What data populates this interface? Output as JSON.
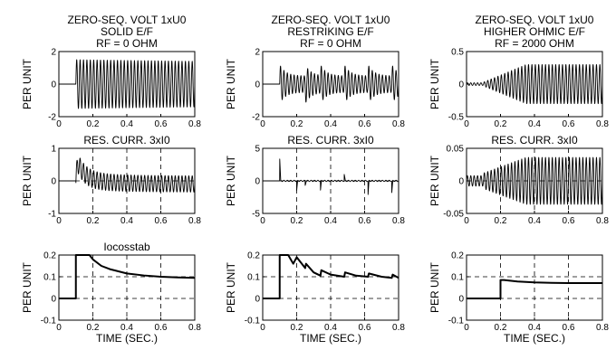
{
  "chart_data": [
    {
      "id": "p11",
      "type": "line",
      "title_lines": [
        "ZERO-SEQ. VOLT 1xU0",
        "SOLID E/F",
        "RF = 0 OHM"
      ],
      "ylabel": "PER UNIT",
      "xlabel": "",
      "xlim": [
        0,
        0.8
      ],
      "ylim": [
        -2,
        2
      ],
      "xticks": [
        "0",
        "0.2",
        "0.4",
        "0.6",
        "0.8"
      ],
      "yticks": [
        {
          "v": -2,
          "label": "-2"
        },
        {
          "v": 0,
          "label": "0"
        },
        {
          "v": 2,
          "label": "2"
        }
      ],
      "grid": false,
      "signal": {
        "kind": "osc",
        "t0": 0.1,
        "pre": 0,
        "start_amp": 1.5,
        "end_amp": 1.4,
        "freq": 50
      }
    },
    {
      "id": "p12",
      "type": "line",
      "title_lines": [
        "ZERO-SEQ. VOLT 1xU0",
        "RESTRIKING  E/F",
        "RF = 0 OHM"
      ],
      "ylabel": "PER UNIT",
      "xlabel": "",
      "xlim": [
        0,
        0.8
      ],
      "ylim": [
        -2,
        2
      ],
      "xticks": [
        "0",
        "0.2",
        "0.4",
        "0.6",
        "0.8"
      ],
      "yticks": [
        {
          "v": -2,
          "label": "-2"
        },
        {
          "v": 0,
          "label": "0"
        },
        {
          "v": 2,
          "label": "2"
        }
      ],
      "grid": false,
      "signal": {
        "kind": "restrike",
        "t0": 0.1,
        "pre": 0,
        "start_amp": 1.2,
        "end_amp": 0.5,
        "freq": 50,
        "restrikes": [
          0.1,
          0.25,
          0.34,
          0.48,
          0.62,
          0.76
        ]
      }
    },
    {
      "id": "p13",
      "type": "line",
      "title_lines": [
        "ZERO-SEQ. VOLT 1xU0",
        "HIGHER OHMIC E/F",
        "RF = 2000 OHM"
      ],
      "ylabel": "PER UNIT",
      "xlabel": "",
      "xlim": [
        0,
        0.8
      ],
      "ylim": [
        -0.5,
        0.5
      ],
      "xticks": [
        "0",
        "0.2",
        "0.4",
        "0.6",
        "0.8"
      ],
      "yticks": [
        {
          "v": -0.5,
          "label": "-0.5"
        },
        {
          "v": 0,
          "label": "0"
        },
        {
          "v": 0.5,
          "label": "0.5"
        }
      ],
      "grid": false,
      "signal": {
        "kind": "grow",
        "t0": 0.1,
        "pre": 0.02,
        "start_amp": 0.03,
        "end_amp": 0.3,
        "freq": 50
      }
    },
    {
      "id": "p21",
      "type": "line",
      "title_lines": [
        "RES. CURR. 3xI0"
      ],
      "ylabel": "PER UNIT",
      "xlabel": "",
      "xlim": [
        0,
        0.8
      ],
      "ylim": [
        -1,
        1
      ],
      "xticks": [
        "0",
        "0.2",
        "0.4",
        "0.6",
        "0.8"
      ],
      "yticks": [
        {
          "v": -1,
          "label": "-1"
        },
        {
          "v": 0,
          "label": "0"
        },
        {
          "v": 1,
          "label": "1"
        }
      ],
      "grid": true,
      "signal": {
        "kind": "decay_offset",
        "t0": 0.1,
        "start_amp": 0.3,
        "end_amp": 0.25,
        "offset0": 0.8,
        "offset_end": 0.1,
        "freq": 50
      }
    },
    {
      "id": "p22",
      "type": "line",
      "title_lines": [
        "RES. CURR. 3xI0"
      ],
      "ylabel": "PER UNIT",
      "xlabel": "",
      "xlim": [
        0,
        0.8
      ],
      "ylim": [
        -5,
        5
      ],
      "xticks": [
        "0",
        "0.2",
        "0.4",
        "0.6",
        "0.8"
      ],
      "yticks": [
        {
          "v": -5,
          "label": "-5"
        },
        {
          "v": 0,
          "label": "0"
        },
        {
          "v": 5,
          "label": "5"
        }
      ],
      "grid": true,
      "signal": {
        "kind": "spikes",
        "t0": 0.1,
        "amp": 0.2,
        "freq": 50,
        "spikes": [
          [
            0.1,
            3.5
          ],
          [
            0.2,
            -1.5
          ],
          [
            0.25,
            -0.7
          ],
          [
            0.34,
            -1.5
          ],
          [
            0.48,
            1.0
          ],
          [
            0.62,
            -2.2
          ],
          [
            0.76,
            -1.8
          ]
        ]
      }
    },
    {
      "id": "p23",
      "type": "line",
      "title_lines": [
        "RES. CURR. 3xI0"
      ],
      "ylabel": "PER UNIT",
      "xlabel": "",
      "xlim": [
        0,
        0.8
      ],
      "ylim": [
        -0.05,
        0.05
      ],
      "xticks": [
        "0",
        "0.2",
        "0.4",
        "0.6",
        "0.8"
      ],
      "yticks": [
        {
          "v": -0.05,
          "label": "-0.05"
        },
        {
          "v": 0,
          "label": "0"
        },
        {
          "v": 0.05,
          "label": "0.05"
        }
      ],
      "grid": true,
      "signal": {
        "kind": "grow",
        "t0": 0.1,
        "pre": 0.008,
        "start_amp": 0.012,
        "end_amp": 0.036,
        "freq": 50
      }
    },
    {
      "id": "p31",
      "type": "line",
      "title_lines": [
        "Iocosstab"
      ],
      "ylabel": "PER UNIT",
      "xlabel": "TIME (SEC.)",
      "xlim": [
        0,
        0.8
      ],
      "ylim": [
        -0.1,
        0.2
      ],
      "xticks": [
        "0",
        "0.2",
        "0.4",
        "0.6",
        "0.8"
      ],
      "yticks": [
        {
          "v": -0.1,
          "label": "-0.1"
        },
        {
          "v": 0,
          "label": "0"
        },
        {
          "v": 0.1,
          "label": "0.1"
        },
        {
          "v": 0.2,
          "label": "0.2"
        }
      ],
      "grid": true,
      "x": [
        0,
        0.1,
        0.1,
        0.18,
        0.2,
        0.25,
        0.3,
        0.35,
        0.4,
        0.5,
        0.6,
        0.7,
        0.8
      ],
      "y": [
        0,
        0,
        0.5,
        0.2,
        0.18,
        0.15,
        0.135,
        0.125,
        0.115,
        0.106,
        0.1,
        0.097,
        0.095
      ]
    },
    {
      "id": "p32",
      "type": "line",
      "title_lines": [
        ""
      ],
      "ylabel": "PER UNIT",
      "xlabel": "TIME (SEC.)",
      "xlim": [
        0,
        0.8
      ],
      "ylim": [
        -0.1,
        0.2
      ],
      "xticks": [
        "0",
        "0.2",
        "0.4",
        "0.6",
        "0.8"
      ],
      "yticks": [
        {
          "v": -0.1,
          "label": "-0.1"
        },
        {
          "v": 0,
          "label": "0"
        },
        {
          "v": 0.1,
          "label": "0.1"
        },
        {
          "v": 0.2,
          "label": "0.2"
        }
      ],
      "grid": true,
      "x": [
        0,
        0.1,
        0.1,
        0.15,
        0.18,
        0.2,
        0.25,
        0.255,
        0.3,
        0.34,
        0.345,
        0.4,
        0.48,
        0.485,
        0.55,
        0.62,
        0.625,
        0.7,
        0.76,
        0.765,
        0.8
      ],
      "y": [
        0,
        0,
        0.5,
        0.2,
        0.16,
        0.19,
        0.14,
        0.16,
        0.12,
        0.105,
        0.13,
        0.11,
        0.1,
        0.12,
        0.105,
        0.1,
        0.115,
        0.1,
        0.095,
        0.11,
        0.095
      ]
    },
    {
      "id": "p33",
      "type": "line",
      "title_lines": [
        ""
      ],
      "ylabel": "PER UNIT",
      "xlabel": "TIME (SEC.)",
      "xlim": [
        0,
        0.8
      ],
      "ylim": [
        -0.1,
        0.2
      ],
      "xticks": [
        "0",
        "0.2",
        "0.4",
        "0.6",
        "0.8"
      ],
      "yticks": [
        {
          "v": -0.1,
          "label": "-0.1"
        },
        {
          "v": 0,
          "label": "0"
        },
        {
          "v": 0.1,
          "label": "0.1"
        },
        {
          "v": 0.2,
          "label": "0.2"
        }
      ],
      "grid": true,
      "x": [
        0,
        0.2,
        0.2,
        0.22,
        0.3,
        0.4,
        0.5,
        0.6,
        0.7,
        0.8
      ],
      "y": [
        0,
        0,
        0.085,
        0.085,
        0.078,
        0.074,
        0.072,
        0.071,
        0.071,
        0.071
      ]
    }
  ]
}
